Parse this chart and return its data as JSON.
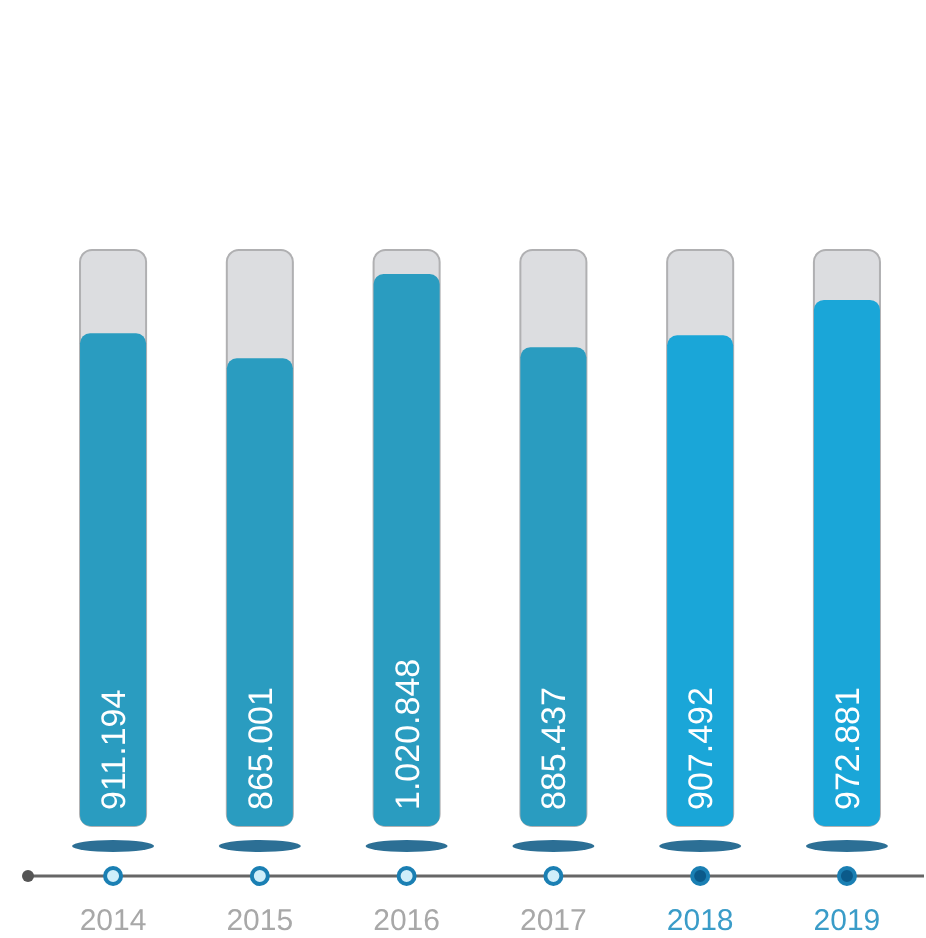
{
  "chart_data": {
    "type": "bar",
    "categories": [
      "2014",
      "2015",
      "2016",
      "2017",
      "2018",
      "2019"
    ],
    "values": [
      911194,
      865001,
      1020848,
      885437,
      907492,
      972881
    ],
    "colors": [
      "#2a9cc0",
      "#2a9cc0",
      "#2a9cc0",
      "#2a9cc0",
      "#1aa6d8",
      "#1aa6d8"
    ],
    "value_labels": [
      "911.194",
      "865.001",
      "1.020.848",
      "885.437",
      "907.492",
      "972.881"
    ]
  }
}
